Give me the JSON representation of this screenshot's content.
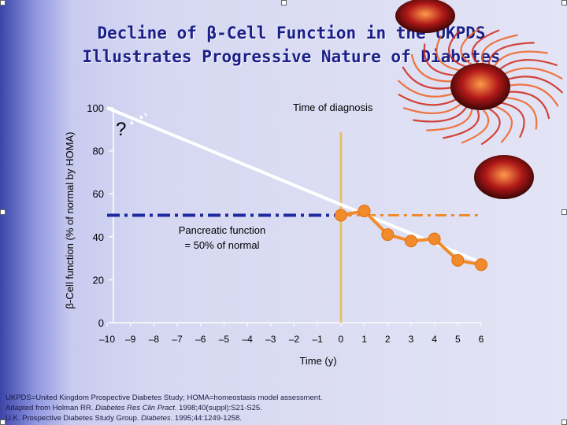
{
  "slide": {
    "title_line1": "Decline of β-Cell Function in the UKPDS",
    "title_line2": "Illustrates Progressive Nature of Diabetes",
    "footnote": {
      "line1": "UKPDS=United Kingdom Prospective Diabetes Study; HOMA=homeostasis model assessment.",
      "line2_pre": "Adapted from Holman RR. ",
      "line2_ital": "Diabetes Res Clin Pract",
      "line2_post": ". 1998;40(suppl):S21-S25.",
      "line3_pre": "U.K. Prospective Diabetes Study Group. ",
      "line3_ital": "Diabetes",
      "line3_post": ". 1995;44:1249-1258."
    }
  },
  "chart_data": {
    "type": "line",
    "title": "",
    "ylabel": "β-Cell function (% of normal by HOMA)",
    "xlabel": "Time (y)",
    "xlim": [
      -10,
      6
    ],
    "ylim": [
      0,
      100
    ],
    "x_ticks": [
      -10,
      -9,
      -8,
      -7,
      -6,
      -5,
      -4,
      -3,
      -2,
      -1,
      0,
      1,
      2,
      3,
      4,
      5,
      6
    ],
    "x_tick_labels": [
      "–10",
      "–9",
      "–8",
      "–7",
      "–6",
      "–5",
      "–4",
      "–3",
      "–2",
      "–1",
      "0",
      "1",
      "2",
      "3",
      "4",
      "5",
      "6"
    ],
    "y_ticks": [
      0,
      20,
      40,
      60,
      80,
      100
    ],
    "y_tick_labels": [
      "0",
      "20",
      "40",
      "60",
      "80",
      "100"
    ],
    "series": [
      {
        "kind": "extrapolation",
        "x": [
          -10,
          6
        ],
        "y": [
          100,
          28
        ],
        "color": "#ffffff"
      },
      {
        "kind": "observed",
        "x": [
          0,
          1,
          2,
          3,
          4,
          5,
          6
        ],
        "y": [
          50,
          52,
          41,
          38,
          39,
          29,
          27
        ],
        "color": "#f08a2a"
      }
    ],
    "reference_lines": [
      {
        "kind": "horizontal",
        "y": 50,
        "color": "#1f2aa0",
        "from_x": -10,
        "to_x": 0
      },
      {
        "kind": "horizontal",
        "y": 50,
        "color": "#f08a2a",
        "from_x": 0,
        "to_x": 6
      },
      {
        "kind": "vertical",
        "x": 0,
        "color": "#e8c060"
      }
    ],
    "annotations": {
      "question_mark": "?",
      "diagnosis": "Time of diagnosis",
      "pancreatic_line1": "Pancreatic function",
      "pancreatic_line2": "= 50% of normal"
    }
  }
}
